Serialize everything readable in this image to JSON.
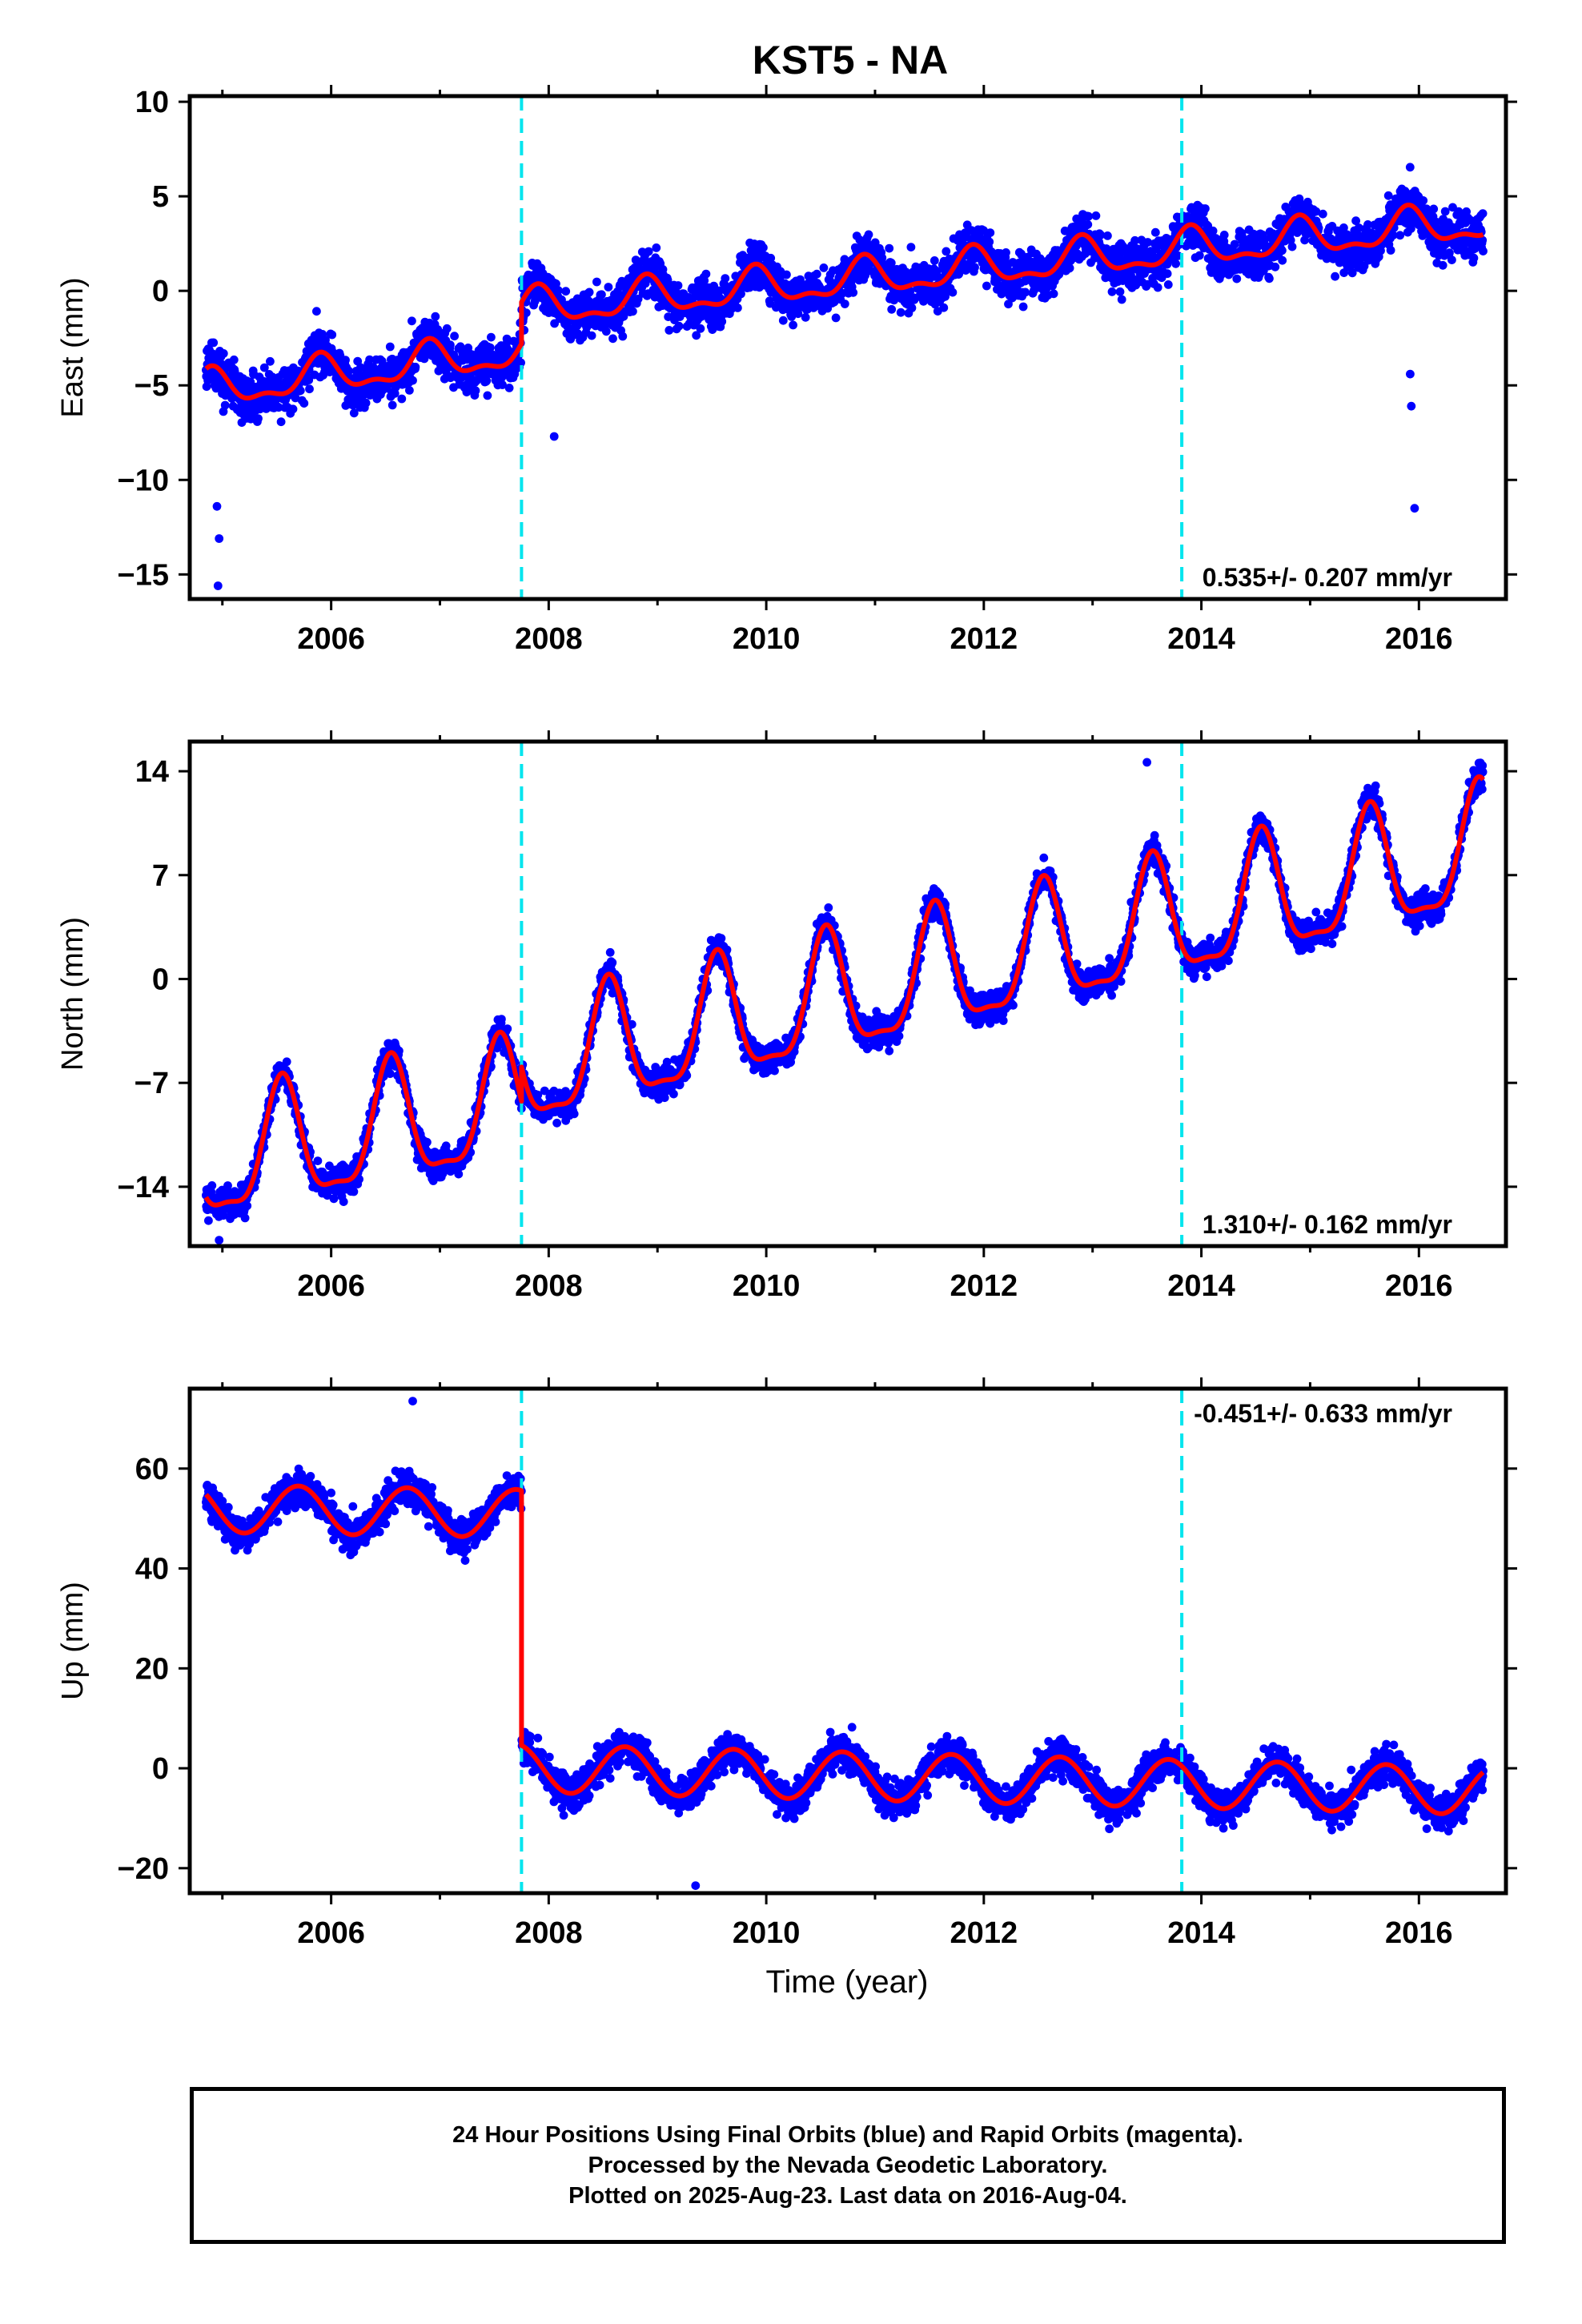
{
  "chart_data": {
    "title": "KST5 - NA",
    "type": "scatter",
    "colors": {
      "final_orbits": "#0000ff",
      "model_fit": "#ff0000",
      "offset_markers": "#00e5ee"
    },
    "x_label": "Time (year)",
    "x_ticks": [
      "2006",
      "2008",
      "2010",
      "2012",
      "2014",
      "2016"
    ],
    "x_range": [
      2004.7,
      2016.8
    ],
    "offset_epochs": [
      2007.75,
      2013.82
    ],
    "last_data": 2016.59,
    "panels": [
      {
        "name": "east",
        "ylabel": "East (mm)",
        "ylim": [
          -16.3,
          10.3
        ],
        "yticks": [
          -15,
          -10,
          -5,
          0,
          5,
          10
        ],
        "rate_text": "0.535+/- 0.207 mm/yr",
        "rate_position": "bottom-right",
        "model": {
          "segments": [
            {
              "from": 2004.85,
              "to": 2007.75,
              "start": -5.3,
              "end": -3.2
            },
            {
              "from": 2007.75,
              "to": 2016.59,
              "start": -1.0,
              "end": 3.6
            }
          ],
          "amplitude": 0.9,
          "phase_year": 2005.9,
          "semi_amplitude": 0.4
        },
        "scatter": {
          "sigma": 1.2
        },
        "outliers": [
          {
            "x": 2004.95,
            "y": -11.4
          },
          {
            "x": 2004.97,
            "y": -13.1
          },
          {
            "x": 2004.96,
            "y": -15.6
          },
          {
            "x": 2008.05,
            "y": -7.7
          },
          {
            "x": 2015.92,
            "y": -4.4
          },
          {
            "x": 2015.93,
            "y": -6.1
          },
          {
            "x": 2015.96,
            "y": -11.5
          }
        ]
      },
      {
        "name": "north",
        "ylabel": "North (mm)",
        "ylim": [
          -18,
          16
        ],
        "yticks": [
          -14,
          -7,
          0,
          7,
          14
        ],
        "rate_text": "1.310+/- 0.162 mm/yr",
        "rate_position": "bottom-right",
        "model": {
          "segments": [
            {
              "from": 2004.85,
              "to": 2007.75,
              "start": -12.5,
              "end": -8.5
            },
            {
              "from": 2007.75,
              "to": 2016.59,
              "start": -6.2,
              "end": 8.5
            }
          ],
          "amplitude": 4.0,
          "phase_year": 2005.55,
          "semi_amplitude": 1.2
        },
        "scatter": {
          "sigma": 1.0
        },
        "outliers": [
          {
            "x": 2004.97,
            "y": -17.6
          },
          {
            "x": 2013.5,
            "y": 14.6
          }
        ]
      },
      {
        "name": "up",
        "ylabel": "Up (mm)",
        "ylim": [
          -25,
          76
        ],
        "yticks": [
          -20,
          0,
          20,
          40,
          60
        ],
        "rate_text": "-0.451+/- 0.633 mm/yr",
        "rate_position": "top-right",
        "model": {
          "segments": [
            {
              "from": 2004.85,
              "to": 2007.75,
              "start": 52,
              "end": 51
            },
            {
              "from": 2007.75,
              "to": 2016.59,
              "start": 0,
              "end": -4.5
            }
          ],
          "amplitude": 4.8,
          "phase_year": 2005.7,
          "semi_amplitude": 0
        },
        "scatter": {
          "sigma": 3.4
        },
        "outliers": [
          {
            "x": 2006.75,
            "y": 73.5
          },
          {
            "x": 2009.35,
            "y": -23.5
          }
        ]
      }
    ]
  },
  "footer": {
    "line1": "24 Hour Positions Using Final Orbits (blue) and Rapid Orbits (magenta).",
    "line2": "Processed by the Nevada Geodetic Laboratory.",
    "line3": "Plotted on 2025-Aug-23. Last data on 2016-Aug-04."
  }
}
